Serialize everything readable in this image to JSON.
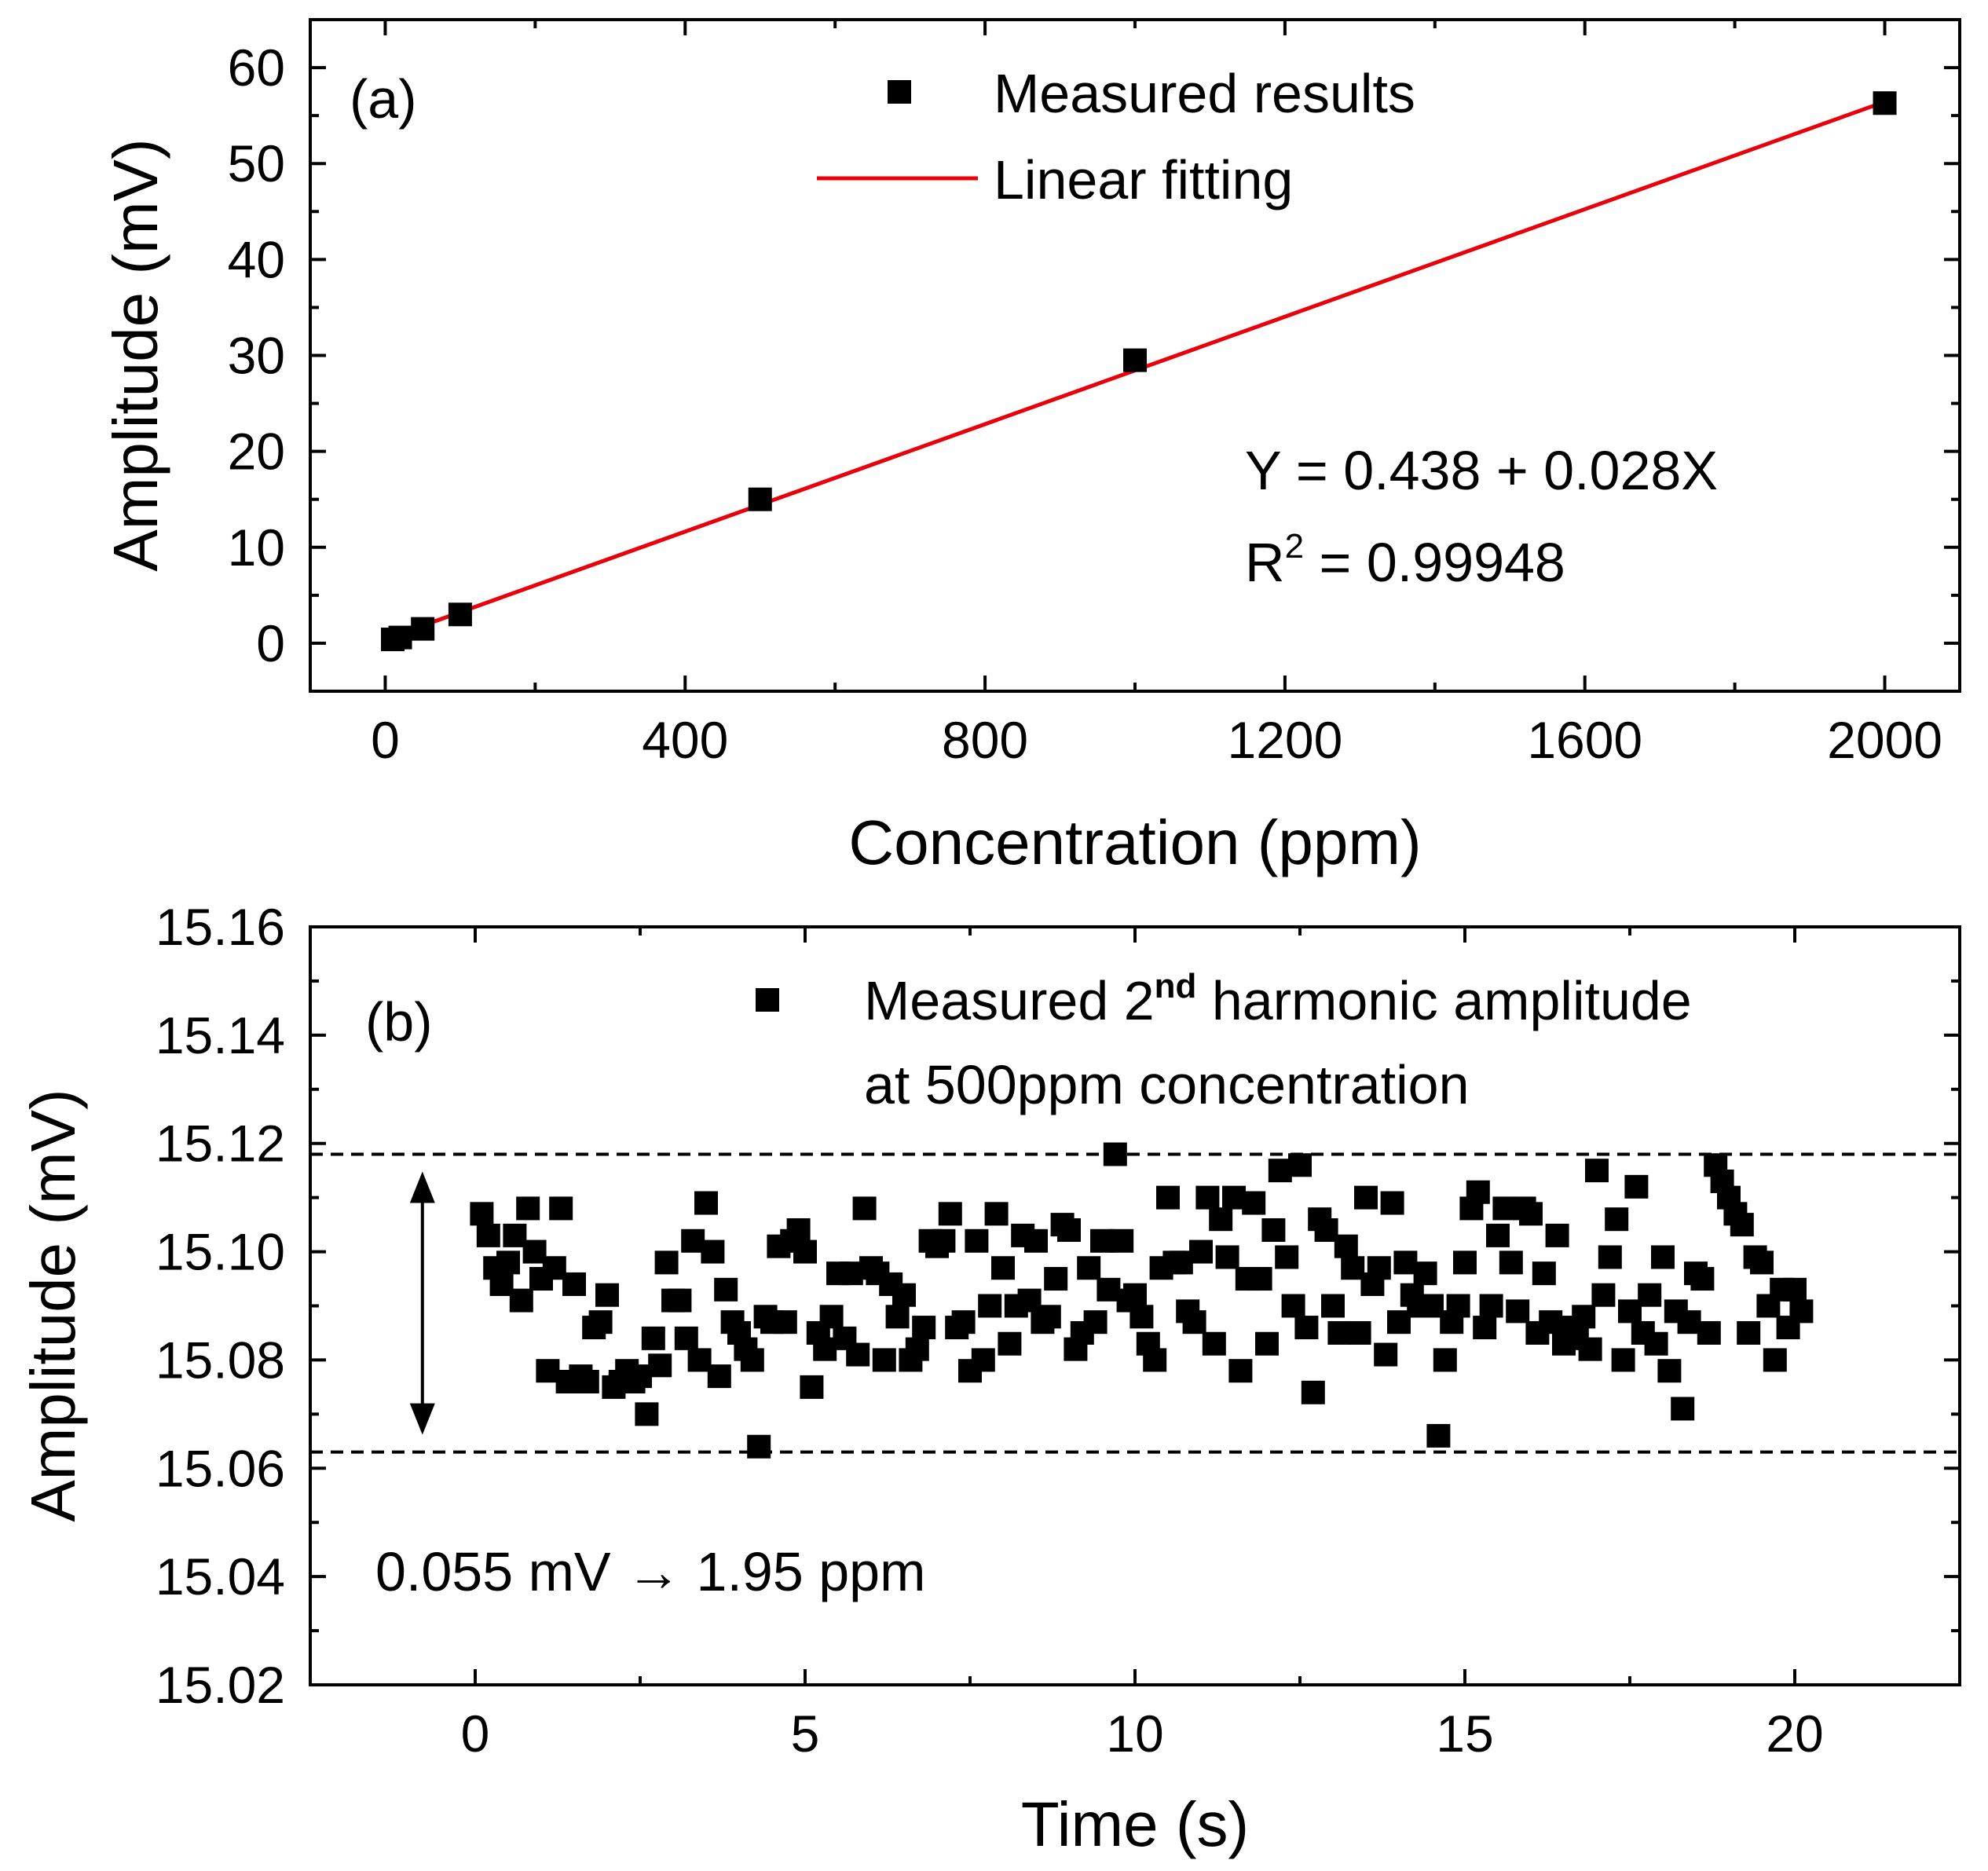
{
  "chart_data": [
    {
      "type": "scatter",
      "panel_label": "(a)",
      "xlabel": "Concentration (ppm)",
      "ylabel": "Amplitude (mV)",
      "xlim": [
        -100,
        2100
      ],
      "ylim": [
        -5,
        65
      ],
      "xticks": [
        "0",
        "400",
        "800",
        "1200",
        "1600",
        "2000"
      ],
      "xtick_values": [
        0,
        400,
        800,
        1200,
        1600,
        2000
      ],
      "yticks": [
        "0",
        "10",
        "20",
        "30",
        "40",
        "50",
        "60"
      ],
      "ytick_values": [
        0,
        10,
        20,
        30,
        40,
        50,
        60
      ],
      "legend": {
        "position": "top",
        "items": [
          "Measured results",
          "Linear fitting"
        ]
      },
      "series": [
        {
          "name": "Measured results",
          "kind": "scatter",
          "color": "#000000",
          "x": [
            10,
            20,
            50,
            100,
            500,
            1000,
            2000
          ],
          "y": [
            0.4,
            0.6,
            1.5,
            3.0,
            15.0,
            29.5,
            56.3
          ]
        },
        {
          "name": "Linear fitting",
          "kind": "line",
          "color": "#e8000b",
          "intercept": 0.438,
          "slope": 0.028,
          "x_range": [
            10,
            2000
          ]
        }
      ],
      "annotations": {
        "equation": "Y = 0.438 + 0.028X",
        "r2_prefix": "R",
        "r2_sup": "2",
        "r2_value": " = 0.99948"
      }
    },
    {
      "type": "scatter",
      "panel_label": "(b)",
      "xlabel": "Time (s)",
      "ylabel": "Amplitude (mV)",
      "xlim": [
        -2.5,
        22.5
      ],
      "ylim": [
        15.02,
        15.16
      ],
      "xticks": [
        "0",
        "5",
        "10",
        "15",
        "20"
      ],
      "xtick_values": [
        0,
        5,
        10,
        15,
        20
      ],
      "yticks": [
        "15.02",
        "15.04",
        "15.06",
        "15.08",
        "15.10",
        "15.12",
        "15.14",
        "15.16"
      ],
      "ytick_values": [
        15.02,
        15.04,
        15.06,
        15.08,
        15.1,
        15.12,
        15.14,
        15.16
      ],
      "legend": {
        "position": "top-right",
        "line1_prefix": "Measured 2",
        "line1_sup": "nd",
        "line1_suffix": " harmonic amplitude",
        "line2": "at 500ppm concentration"
      },
      "reference_lines": {
        "upper": 15.118,
        "lower": 15.063
      },
      "arrow_x": -0.8,
      "annotation": "0.055 mV → 1.95 ppm",
      "series": [
        {
          "name": "Measured 2nd harmonic amplitude at 500ppm concentration",
          "color": "#000000",
          "points": [
            [
              0.1,
              15.107
            ],
            [
              0.2,
              15.103
            ],
            [
              0.3,
              15.097
            ],
            [
              0.4,
              15.094
            ],
            [
              0.5,
              15.098
            ],
            [
              0.6,
              15.103
            ],
            [
              0.7,
              15.091
            ],
            [
              0.8,
              15.108
            ],
            [
              0.9,
              15.1
            ],
            [
              1.0,
              15.095
            ],
            [
              1.1,
              15.078
            ],
            [
              1.2,
              15.097
            ],
            [
              1.3,
              15.108
            ],
            [
              1.4,
              15.076
            ],
            [
              1.5,
              15.094
            ],
            [
              1.6,
              15.077
            ],
            [
              1.7,
              15.076
            ],
            [
              1.8,
              15.086
            ],
            [
              1.9,
              15.087
            ],
            [
              2.0,
              15.092
            ],
            [
              2.1,
              15.075
            ],
            [
              2.2,
              15.076
            ],
            [
              2.3,
              15.078
            ],
            [
              2.4,
              15.076
            ],
            [
              2.5,
              15.077
            ],
            [
              2.6,
              15.07
            ],
            [
              2.7,
              15.084
            ],
            [
              2.8,
              15.079
            ],
            [
              2.9,
              15.098
            ],
            [
              3.0,
              15.091
            ],
            [
              3.1,
              15.091
            ],
            [
              3.2,
              15.084
            ],
            [
              3.3,
              15.102
            ],
            [
              3.4,
              15.08
            ],
            [
              3.5,
              15.109
            ],
            [
              3.6,
              15.1
            ],
            [
              3.7,
              15.077
            ],
            [
              3.8,
              15.093
            ],
            [
              3.9,
              15.087
            ],
            [
              4.0,
              15.085
            ],
            [
              4.1,
              15.082
            ],
            [
              4.2,
              15.08
            ],
            [
              4.3,
              15.064
            ],
            [
              4.4,
              15.088
            ],
            [
              4.5,
              15.087
            ],
            [
              4.6,
              15.101
            ],
            [
              4.7,
              15.087
            ],
            [
              4.8,
              15.102
            ],
            [
              4.9,
              15.104
            ],
            [
              5.0,
              15.1
            ],
            [
              5.1,
              15.075
            ],
            [
              5.2,
              15.085
            ],
            [
              5.3,
              15.082
            ],
            [
              5.4,
              15.088
            ],
            [
              5.5,
              15.096
            ],
            [
              5.6,
              15.084
            ],
            [
              5.7,
              15.096
            ],
            [
              5.8,
              15.081
            ],
            [
              5.9,
              15.108
            ],
            [
              6.0,
              15.097
            ],
            [
              6.1,
              15.096
            ],
            [
              6.2,
              15.08
            ],
            [
              6.3,
              15.094
            ],
            [
              6.4,
              15.088
            ],
            [
              6.5,
              15.092
            ],
            [
              6.6,
              15.08
            ],
            [
              6.7,
              15.082
            ],
            [
              6.8,
              15.086
            ],
            [
              6.9,
              15.102
            ],
            [
              7.0,
              15.101
            ],
            [
              7.1,
              15.102
            ],
            [
              7.2,
              15.107
            ],
            [
              7.3,
              15.086
            ],
            [
              7.4,
              15.087
            ],
            [
              7.5,
              15.078
            ],
            [
              7.6,
              15.102
            ],
            [
              7.7,
              15.08
            ],
            [
              7.8,
              15.09
            ],
            [
              7.9,
              15.107
            ],
            [
              8.0,
              15.097
            ],
            [
              8.1,
              15.083
            ],
            [
              8.2,
              15.09
            ],
            [
              8.3,
              15.103
            ],
            [
              8.4,
              15.091
            ],
            [
              8.5,
              15.102
            ],
            [
              8.6,
              15.087
            ],
            [
              8.7,
              15.088
            ],
            [
              8.8,
              15.095
            ],
            [
              8.9,
              15.105
            ],
            [
              9.0,
              15.104
            ],
            [
              9.1,
              15.082
            ],
            [
              9.2,
              15.085
            ],
            [
              9.3,
              15.097
            ],
            [
              9.4,
              15.087
            ],
            [
              9.5,
              15.102
            ],
            [
              9.6,
              15.093
            ],
            [
              9.7,
              15.118
            ],
            [
              9.8,
              15.102
            ],
            [
              9.9,
              15.091
            ],
            [
              10.0,
              15.092
            ],
            [
              10.1,
              15.088
            ],
            [
              10.2,
              15.083
            ],
            [
              10.3,
              15.08
            ],
            [
              10.4,
              15.097
            ],
            [
              10.5,
              15.11
            ],
            [
              10.6,
              15.098
            ],
            [
              10.7,
              15.098
            ],
            [
              10.8,
              15.089
            ],
            [
              10.9,
              15.087
            ],
            [
              11.0,
              15.1
            ],
            [
              11.1,
              15.11
            ],
            [
              11.2,
              15.083
            ],
            [
              11.3,
              15.106
            ],
            [
              11.4,
              15.099
            ],
            [
              11.5,
              15.11
            ],
            [
              11.6,
              15.078
            ],
            [
              11.7,
              15.095
            ],
            [
              11.8,
              15.109
            ],
            [
              11.9,
              15.095
            ],
            [
              12.0,
              15.083
            ],
            [
              12.1,
              15.104
            ],
            [
              12.2,
              15.115
            ],
            [
              12.3,
              15.099
            ],
            [
              12.4,
              15.09
            ],
            [
              12.5,
              15.116
            ],
            [
              12.6,
              15.086
            ],
            [
              12.7,
              15.074
            ],
            [
              12.8,
              15.106
            ],
            [
              12.9,
              15.104
            ],
            [
              13.0,
              15.09
            ],
            [
              13.1,
              15.085
            ],
            [
              13.2,
              15.101
            ],
            [
              13.3,
              15.097
            ],
            [
              13.4,
              15.085
            ],
            [
              13.5,
              15.11
            ],
            [
              13.6,
              15.094
            ],
            [
              13.7,
              15.097
            ],
            [
              13.8,
              15.081
            ],
            [
              13.9,
              15.109
            ],
            [
              14.0,
              15.087
            ],
            [
              14.1,
              15.098
            ],
            [
              14.2,
              15.092
            ],
            [
              14.3,
              15.09
            ],
            [
              14.4,
              15.096
            ],
            [
              14.5,
              15.09
            ],
            [
              14.6,
              15.066
            ],
            [
              14.7,
              15.08
            ],
            [
              14.8,
              15.087
            ],
            [
              14.9,
              15.09
            ],
            [
              15.0,
              15.098
            ],
            [
              15.1,
              15.108
            ],
            [
              15.2,
              15.111
            ],
            [
              15.3,
              15.086
            ],
            [
              15.4,
              15.09
            ],
            [
              15.5,
              15.103
            ],
            [
              15.6,
              15.108
            ],
            [
              15.7,
              15.098
            ],
            [
              15.8,
              15.089
            ],
            [
              15.9,
              15.108
            ],
            [
              16.0,
              15.107
            ],
            [
              16.1,
              15.085
            ],
            [
              16.2,
              15.096
            ],
            [
              16.3,
              15.087
            ],
            [
              16.4,
              15.103
            ],
            [
              16.5,
              15.083
            ],
            [
              16.6,
              15.086
            ],
            [
              16.7,
              15.084
            ],
            [
              16.8,
              15.088
            ],
            [
              16.9,
              15.082
            ],
            [
              17.0,
              15.115
            ],
            [
              17.1,
              15.092
            ],
            [
              17.2,
              15.099
            ],
            [
              17.3,
              15.106
            ],
            [
              17.4,
              15.08
            ],
            [
              17.5,
              15.089
            ],
            [
              17.6,
              15.112
            ],
            [
              17.7,
              15.085
            ],
            [
              17.8,
              15.092
            ],
            [
              17.9,
              15.083
            ],
            [
              18.0,
              15.099
            ],
            [
              18.1,
              15.078
            ],
            [
              18.2,
              15.089
            ],
            [
              18.3,
              15.071
            ],
            [
              18.4,
              15.087
            ],
            [
              18.5,
              15.096
            ],
            [
              18.6,
              15.095
            ],
            [
              18.7,
              15.085
            ],
            [
              18.8,
              15.116
            ],
            [
              18.9,
              15.113
            ],
            [
              19.0,
              15.11
            ],
            [
              19.1,
              15.107
            ],
            [
              19.2,
              15.105
            ],
            [
              19.3,
              15.085
            ],
            [
              19.4,
              15.099
            ],
            [
              19.5,
              15.098
            ],
            [
              19.6,
              15.09
            ],
            [
              19.7,
              15.08
            ],
            [
              19.8,
              15.093
            ],
            [
              19.9,
              15.086
            ],
            [
              20.0,
              15.093
            ],
            [
              20.1,
              15.089
            ]
          ]
        }
      ]
    }
  ]
}
